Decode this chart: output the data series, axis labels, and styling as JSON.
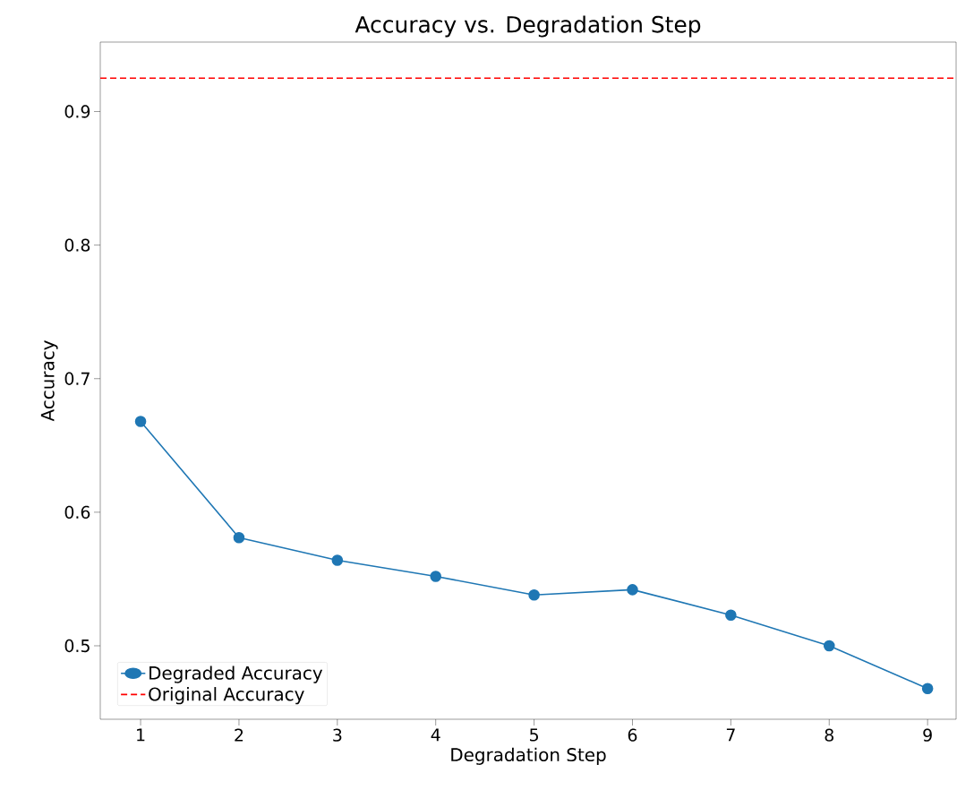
{
  "chart_data": {
    "type": "line",
    "title": "Accuracy vs. Degradation Step",
    "xlabel": "Degradation Step",
    "ylabel": "Accuracy",
    "x": [
      1,
      2,
      3,
      4,
      5,
      6,
      7,
      8,
      9
    ],
    "series": [
      {
        "name": "Degraded Accuracy",
        "color": "#1f77b4",
        "values": [
          0.668,
          0.581,
          0.564,
          0.552,
          0.538,
          0.542,
          0.523,
          0.5,
          0.468
        ]
      }
    ],
    "ref_lines": [
      {
        "axis": "y",
        "value": 0.925,
        "label": "Original Accuracy",
        "color": "#ff0000",
        "line_style": "dashed"
      }
    ],
    "xlim": [
      0.59,
      9.29
    ],
    "ylim": [
      0.445,
      0.952
    ],
    "xticks": [
      1,
      2,
      3,
      4,
      5,
      6,
      7,
      8,
      9
    ],
    "yticks": [
      0.5,
      0.6,
      0.7,
      0.8,
      0.9
    ],
    "marker": "circle",
    "line_style": "solid",
    "legend": "bottom left",
    "grid": false
  }
}
